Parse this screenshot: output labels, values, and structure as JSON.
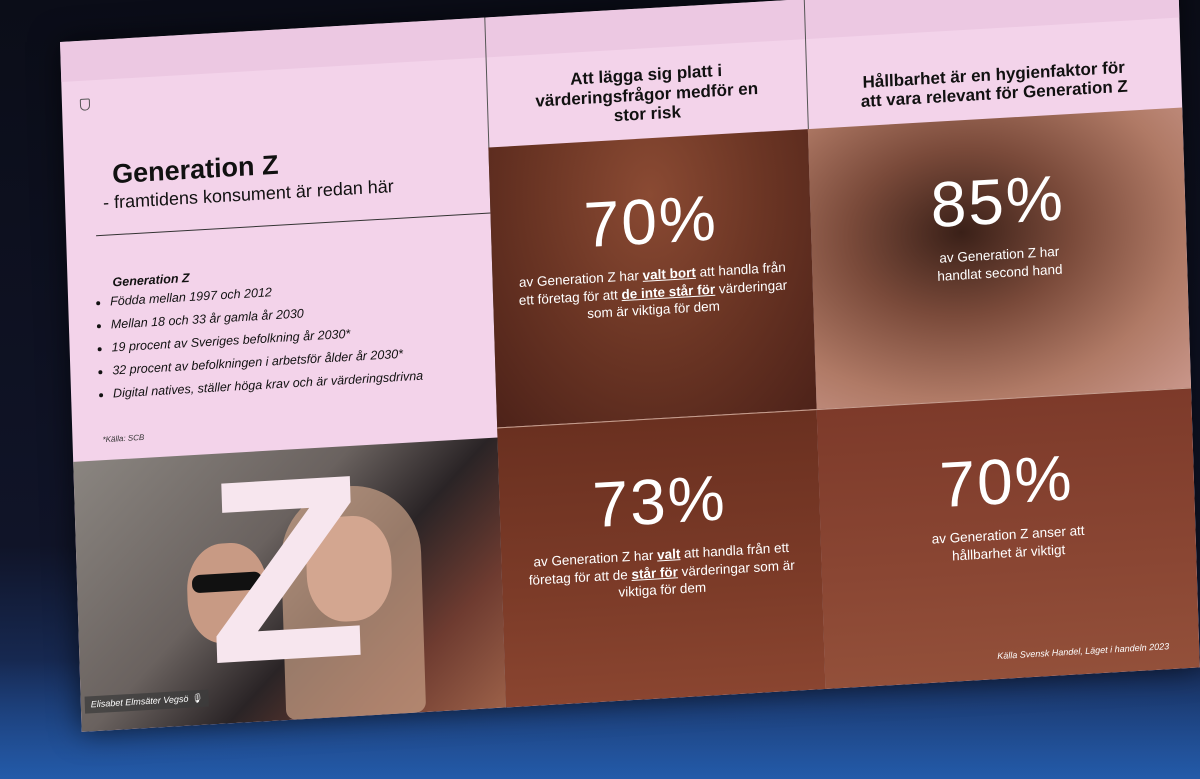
{
  "slide": {
    "title": "Generation Z",
    "subtitle": "- framtidens konsument är redan här",
    "list_heading": "Generation Z",
    "bullets": [
      "Födda mellan 1997 och 2012",
      "Mellan 18 och 33 år gamla år 2030",
      "19 procent av Sveriges befolkning år 2030*",
      "32 procent av befolkningen i arbetsför ålder år 2030*",
      "Digital natives, ställer höga krav och är värderingsdrivna"
    ],
    "footnote": "*Källa: SCB",
    "photo_letter": "Z",
    "presenter_caption": "Elisabet Elmsäter Vegsö",
    "column_headers": [
      "Att lägga sig platt i värderingsfrågor medför en stor risk",
      "Hållbarhet är en hygienfaktor för att vara relevant för Generation Z"
    ],
    "stats": [
      {
        "value": "70%",
        "pre": "av Generation Z har ",
        "bold": "valt bort",
        "mid": " att handla från ett företag för att ",
        "bold2": "de inte står för",
        "post": " värderingar som är viktiga för dem"
      },
      {
        "value": "85%",
        "pre": "av Generation Z har handlat second hand"
      },
      {
        "value": "73%",
        "pre": "av Generation Z har ",
        "bold": "valt",
        "mid": " att handla från ett företag för att de ",
        "bold2": "står för",
        "post": " värderingar som är viktiga för dem"
      },
      {
        "value": "70%",
        "pre": "av Generation Z anser att hållbarhet är viktigt"
      }
    ],
    "source": "Källa Svensk Handel, Läget i handeln 2023"
  }
}
